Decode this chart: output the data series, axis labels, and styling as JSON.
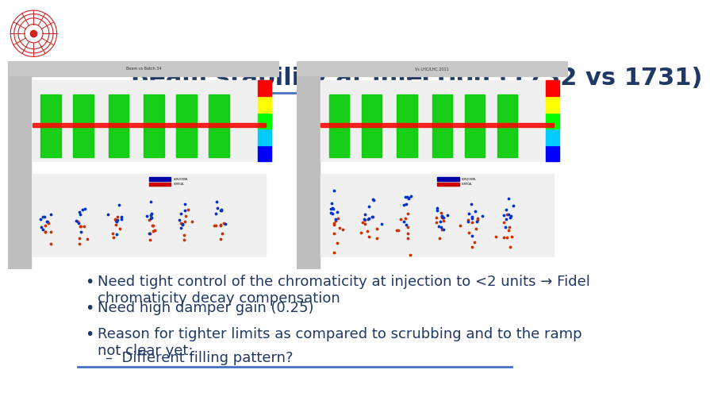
{
  "title": "Beam stability at injection (1732 vs 1731)",
  "title_color": "#1F3864",
  "title_fontsize": 22,
  "background_color": "#ffffff",
  "bullet_points": [
    "Need tight control of the chromaticity at injection to <2 units → Fidel\nchromaticity decay compensation",
    "Need high damper gain (0.25)",
    "Reason for tighter limits as compared to scrubbing and to the ramp\nnot clear yet:"
  ],
  "sub_bullet": "Different filling pattern?",
  "bullet_color": "#1F3864",
  "bullet_fontsize": 13,
  "separator_color": "#4472C4",
  "logo_color": "#cc2222",
  "image_panel_bg": "#e8e8e8"
}
